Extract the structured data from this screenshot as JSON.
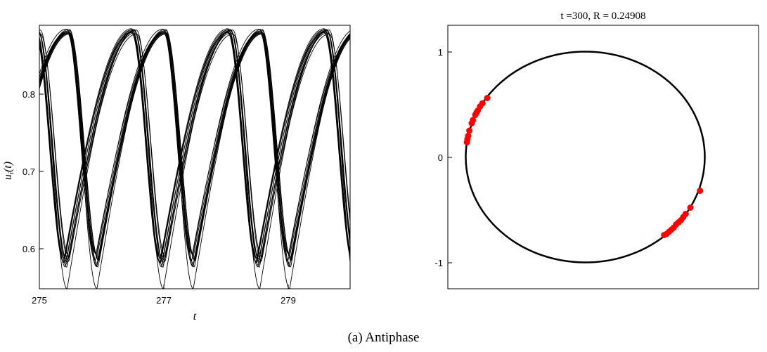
{
  "caption": "(a) Antiphase",
  "chart_data": [
    {
      "type": "line",
      "xlabel": "t",
      "ylabel": "u_i(t)",
      "xlim": [
        275,
        280
      ],
      "ylim": [
        0.545,
        0.89
      ],
      "xticks": [
        "275",
        "277",
        "279"
      ],
      "yticks": [
        "0.6",
        "0.7",
        "0.8"
      ],
      "line_color": "#000000",
      "period": 1.55,
      "u_max": 0.886,
      "u_min": 0.592,
      "rise_fraction": 0.7,
      "group_phases": [
        0.3,
        0.98
      ],
      "oscillator_count": 24
    },
    {
      "type": "scatter",
      "title": "t =300, R = 0.24908",
      "xlim": [
        -1.15,
        1.45
      ],
      "ylim": [
        -1.25,
        1.25
      ],
      "yticks": [
        "-1",
        "0",
        "1"
      ],
      "circle_radius": 1,
      "circle_color": "#000000",
      "point_color": "#ff0000",
      "points": [
        [
          -0.82,
          0.56
        ],
        [
          -0.86,
          0.51
        ],
        [
          -0.88,
          0.48
        ],
        [
          -0.9,
          0.44
        ],
        [
          -0.91,
          0.42
        ],
        [
          -0.92,
          0.4
        ],
        [
          -0.94,
          0.35
        ],
        [
          -0.95,
          0.32
        ],
        [
          -0.97,
          0.25
        ],
        [
          -0.98,
          0.2
        ],
        [
          -0.986,
          0.17
        ],
        [
          -0.99,
          0.14
        ],
        [
          0.96,
          -0.32
        ],
        [
          0.88,
          -0.48
        ],
        [
          0.84,
          -0.54
        ],
        [
          0.82,
          -0.57
        ],
        [
          0.8,
          -0.6
        ],
        [
          0.78,
          -0.62
        ],
        [
          0.76,
          -0.64
        ],
        [
          0.74,
          -0.67
        ],
        [
          0.72,
          -0.69
        ],
        [
          0.7,
          -0.71
        ],
        [
          0.68,
          -0.73
        ],
        [
          0.66,
          -0.74
        ]
      ]
    }
  ]
}
